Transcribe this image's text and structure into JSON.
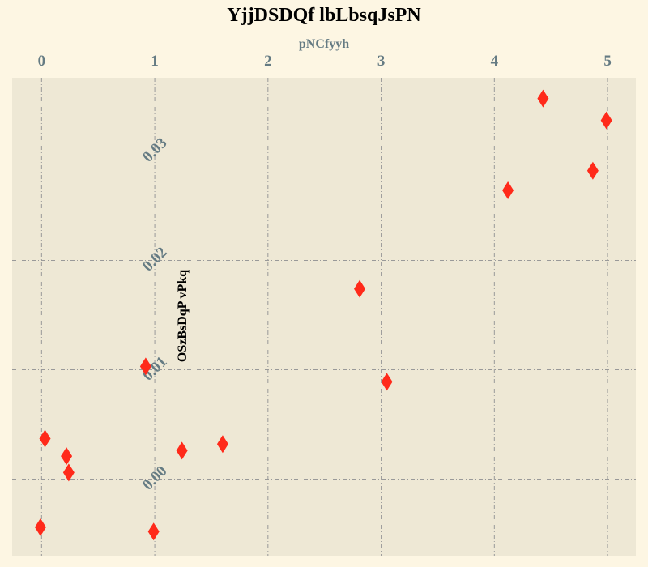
{
  "chart_data": {
    "type": "scatter",
    "title": "YjjDSDQf lbLbsqJsPN",
    "xlabel": "pNCfyyh",
    "ylabel": "OSzBsDqP vPkq",
    "xlim": [
      -0.26,
      5.25
    ],
    "ylim": [
      -0.007,
      0.0367
    ],
    "x_ticks": [
      "0",
      "1",
      "2",
      "3",
      "4",
      "5"
    ],
    "y_ticks": [
      "0.00",
      "0.01",
      "0.02",
      "0.03"
    ],
    "x_axis_position": "top",
    "grid": true,
    "marker": "diamond",
    "colors": {
      "background": "#fdf6e3",
      "plot_area": "#eee8d5",
      "grid": "#999999",
      "marker": "#ff2a1a",
      "tick_text": "#657b83"
    },
    "series": [
      {
        "points": [
          {
            "x": 0.03,
            "y": 0.0037
          },
          {
            "x": 0.22,
            "y": 0.0021
          },
          {
            "x": 0.24,
            "y": 0.0006
          },
          {
            "x": -0.01,
            "y": -0.0044
          },
          {
            "x": 0.92,
            "y": 0.0103
          },
          {
            "x": 0.99,
            "y": -0.0048
          },
          {
            "x": 1.24,
            "y": 0.0026
          },
          {
            "x": 1.6,
            "y": 0.0032
          },
          {
            "x": 2.81,
            "y": 0.0174
          },
          {
            "x": 3.05,
            "y": 0.0089
          },
          {
            "x": 4.12,
            "y": 0.0264
          },
          {
            "x": 4.43,
            "y": 0.0348
          },
          {
            "x": 4.87,
            "y": 0.0282
          },
          {
            "x": 4.99,
            "y": 0.0328
          }
        ]
      }
    ]
  }
}
